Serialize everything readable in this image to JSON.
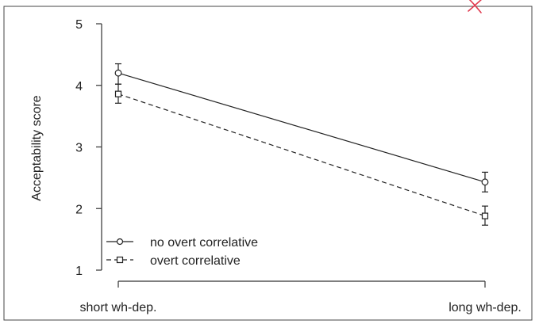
{
  "chart_data": {
    "type": "line",
    "categories": [
      "short wh-dep.",
      "long wh-dep."
    ],
    "ylabel": "Acceptability score",
    "xlabel": "",
    "ylim": [
      1,
      5
    ],
    "yticks": [
      "1",
      "2",
      "3",
      "4",
      "5"
    ],
    "legend_position": "bottom-left",
    "series": [
      {
        "name": "no overt correlative",
        "marker": "circle",
        "line_style": "solid",
        "values": [
          4.2,
          2.43
        ],
        "error_low": [
          4.02,
          2.27
        ],
        "error_high": [
          4.35,
          2.59
        ]
      },
      {
        "name": "overt correlative",
        "marker": "square",
        "line_style": "dashed",
        "values": [
          3.86,
          1.88
        ],
        "error_low": [
          3.71,
          1.73
        ],
        "error_high": [
          4.02,
          2.04
        ]
      }
    ],
    "annotation_mark": {
      "symbol": "x",
      "color": "#e03a4f"
    }
  }
}
